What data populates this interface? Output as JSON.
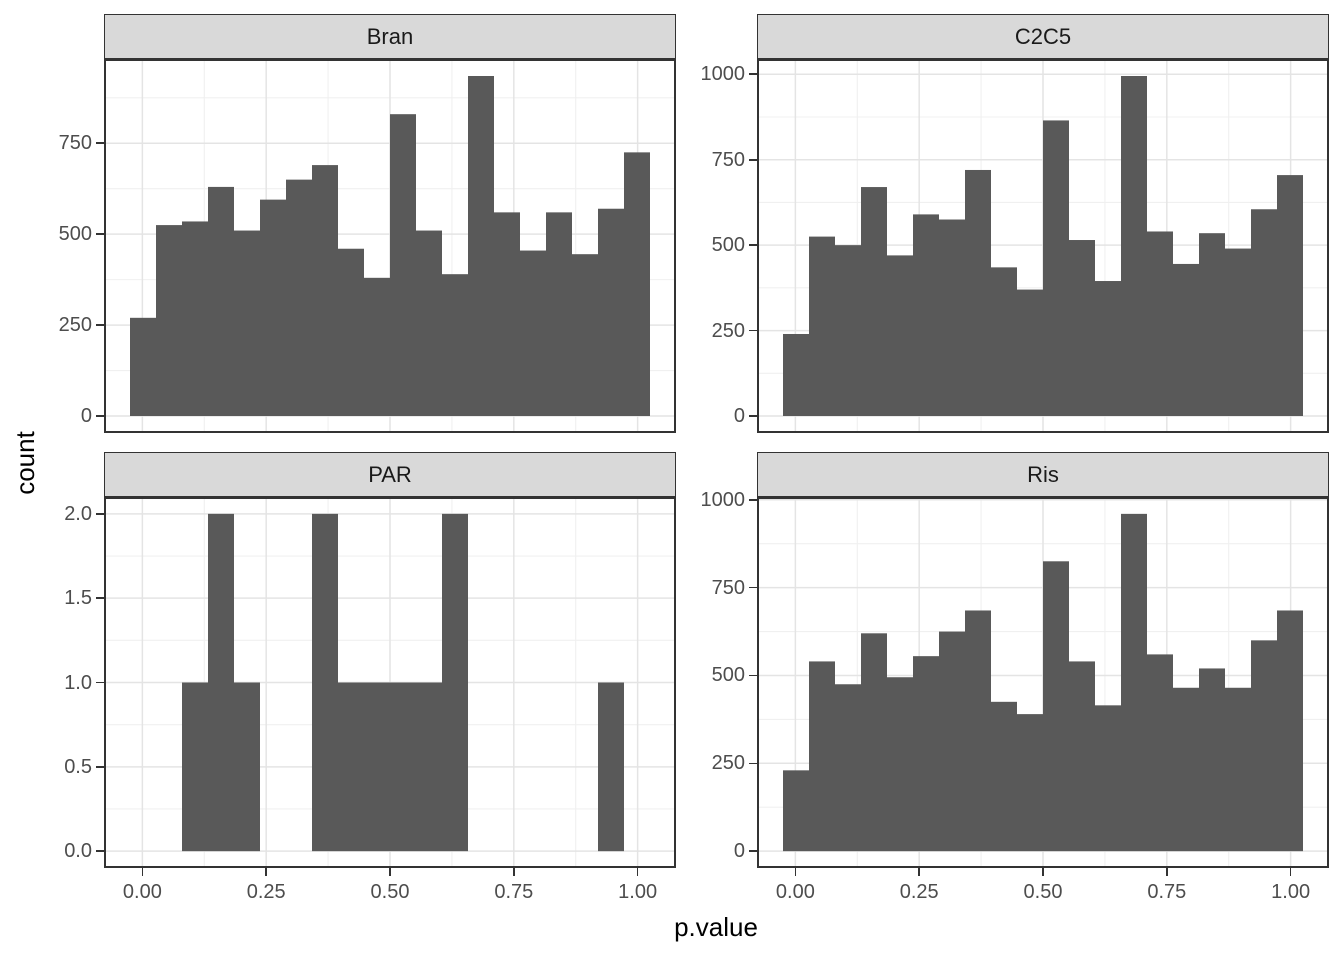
{
  "figure": {
    "background": "#ffffff"
  },
  "style": {
    "bar_fill": "#595959",
    "strip_background": "#d9d9d9",
    "strip_text_color": "#1a1a1a",
    "panel_border_color": "#333333",
    "grid_major_color": "#e4e4e4",
    "grid_minor_color": "#f0f0f0",
    "axis_text_color": "#4d4d4d",
    "tick_mark_color": "#333333",
    "axis_title_color": "#000000"
  },
  "axes": {
    "x_title": "p.value",
    "y_title": "count",
    "xlim": [
      -0.0775,
      1.0775
    ],
    "x_ticks": [
      0,
      0.25,
      0.5,
      0.75,
      1.0
    ],
    "x_tick_labels": [
      "0.00",
      "0.25",
      "0.50",
      "0.75",
      "1.00"
    ],
    "x_minor": [
      0.125,
      0.375,
      0.625,
      0.875
    ]
  },
  "chart_data": [
    {
      "id": "bran",
      "type": "bar",
      "title": "Bran",
      "xlabel": "p.value",
      "ylabel": "count",
      "bin_start": -0.025,
      "bin_width": 0.0525,
      "counts": [
        270,
        525,
        535,
        630,
        510,
        595,
        650,
        690,
        460,
        380,
        830,
        510,
        390,
        935,
        560,
        455,
        560,
        445,
        570,
        725
      ],
      "ylim": [
        -46.75,
        981.75
      ],
      "y_ticks": [
        0,
        250,
        500,
        750
      ],
      "y_tick_labels": [
        "0",
        "250",
        "500",
        "750"
      ],
      "y_minor": [
        125,
        375,
        625,
        875
      ],
      "row": 0,
      "col": 0,
      "show_x_axis": false
    },
    {
      "id": "c2c5",
      "type": "bar",
      "title": "C2C5",
      "xlabel": "p.value",
      "ylabel": "count",
      "bin_start": -0.025,
      "bin_width": 0.0525,
      "counts": [
        240,
        525,
        500,
        670,
        470,
        590,
        575,
        720,
        435,
        370,
        865,
        515,
        395,
        995,
        540,
        445,
        535,
        490,
        605,
        705
      ],
      "ylim": [
        -49.75,
        1044.75
      ],
      "y_ticks": [
        0,
        250,
        500,
        750,
        1000
      ],
      "y_tick_labels": [
        "0",
        "250",
        "500",
        "750",
        "1000"
      ],
      "y_minor": [
        125,
        375,
        625,
        875
      ],
      "row": 0,
      "col": 1,
      "show_x_axis": false
    },
    {
      "id": "par",
      "type": "bar",
      "title": "PAR",
      "xlabel": "p.value",
      "ylabel": "count",
      "bin_start": -0.025,
      "bin_width": 0.0525,
      "counts": [
        0,
        0,
        1,
        2,
        1,
        0,
        0,
        2,
        1,
        1,
        1,
        1,
        2,
        0,
        0,
        0,
        0,
        0,
        1,
        0
      ],
      "ylim": [
        -0.1,
        2.1
      ],
      "y_ticks": [
        0,
        0.5,
        1.0,
        1.5,
        2.0
      ],
      "y_tick_labels": [
        "0.0",
        "0.5",
        "1.0",
        "1.5",
        "2.0"
      ],
      "y_minor": [
        0.25,
        0.75,
        1.25,
        1.75
      ],
      "row": 1,
      "col": 0,
      "show_x_axis": true
    },
    {
      "id": "ris",
      "type": "bar",
      "title": "Ris",
      "xlabel": "p.value",
      "ylabel": "count",
      "bin_start": -0.025,
      "bin_width": 0.0525,
      "counts": [
        230,
        540,
        475,
        620,
        495,
        555,
        625,
        685,
        425,
        390,
        825,
        540,
        415,
        960,
        560,
        465,
        520,
        465,
        600,
        685
      ],
      "ylim": [
        -48,
        1008
      ],
      "y_ticks": [
        0,
        250,
        500,
        750,
        1000
      ],
      "y_tick_labels": [
        "0",
        "250",
        "500",
        "750",
        "1000"
      ],
      "y_minor": [
        125,
        375,
        625,
        875
      ],
      "row": 1,
      "col": 1,
      "show_x_axis": true
    }
  ]
}
